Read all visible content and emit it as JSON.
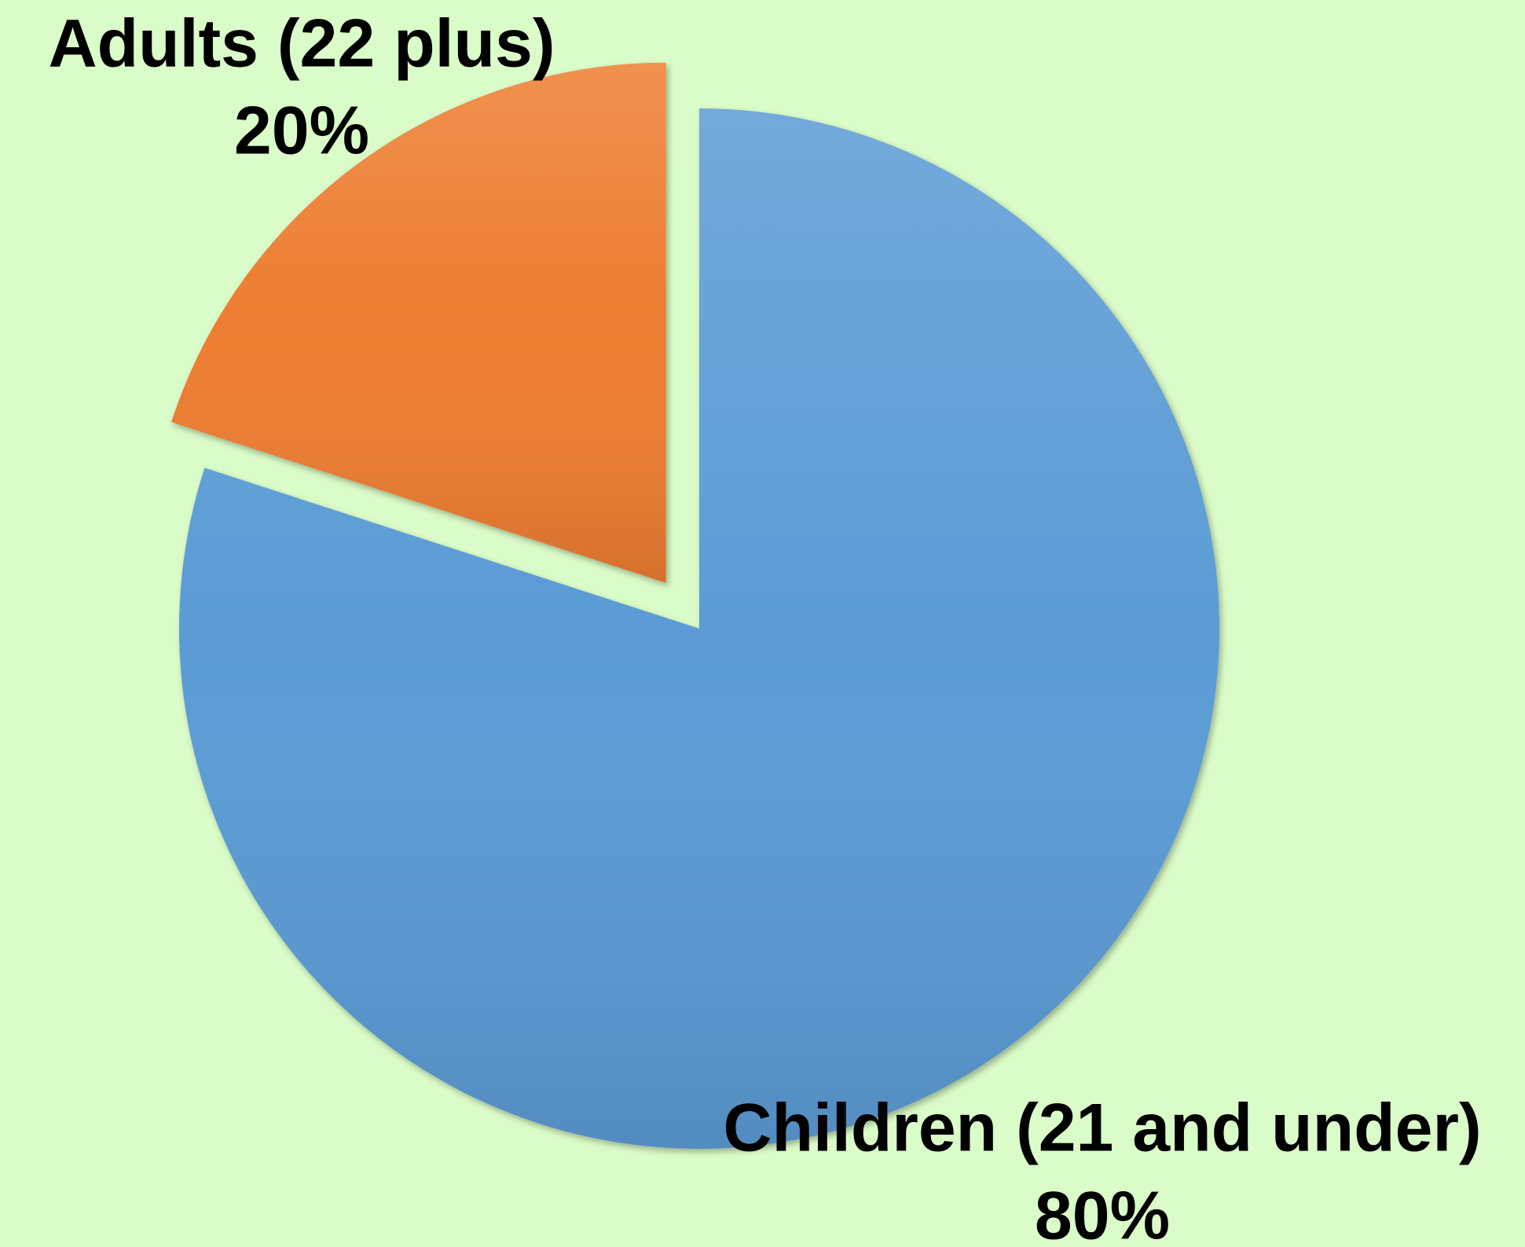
{
  "chart_data": {
    "type": "pie",
    "categories": [
      "Children (21 and under)",
      "Adults (22 plus)"
    ],
    "values": [
      80,
      20
    ],
    "value_labels": [
      "80%",
      "20%"
    ],
    "colors": [
      "#5b9bd5",
      "#ed7d31"
    ],
    "explode": [
      false,
      true
    ]
  }
}
